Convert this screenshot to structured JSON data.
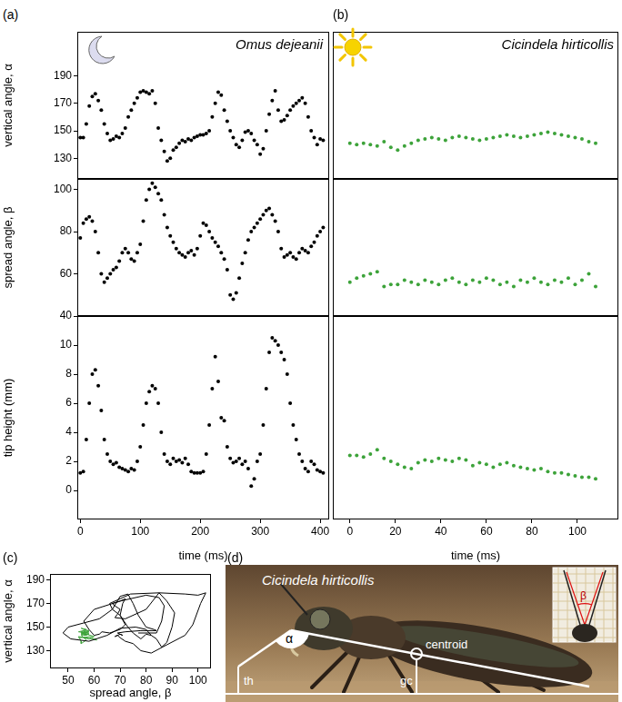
{
  "chart_data": [
    {
      "type": "scatter",
      "title": "Omus dejeanii",
      "annotations": [
        "(a)"
      ],
      "ylabel": "vertical angle, α",
      "color": "#000000",
      "marker": "circle",
      "x": [
        0,
        5,
        10,
        15,
        20,
        25,
        30,
        35,
        40,
        45,
        50,
        55,
        60,
        65,
        70,
        75,
        80,
        85,
        90,
        95,
        100,
        105,
        110,
        115,
        120,
        125,
        130,
        135,
        140,
        145,
        150,
        155,
        160,
        165,
        170,
        175,
        180,
        185,
        190,
        195,
        200,
        205,
        210,
        215,
        220,
        225,
        230,
        235,
        240,
        245,
        250,
        255,
        260,
        265,
        270,
        275,
        280,
        285,
        290,
        295,
        300,
        305,
        310,
        315,
        320,
        325,
        330,
        335,
        340,
        345,
        350,
        355,
        360,
        365,
        370,
        375,
        380,
        385,
        390,
        395,
        400,
        405
      ],
      "values": [
        145,
        145,
        155,
        168,
        175,
        177,
        172,
        165,
        155,
        148,
        143,
        144,
        146,
        145,
        148,
        152,
        160,
        165,
        170,
        174,
        178,
        179,
        178,
        177,
        179,
        170,
        152,
        143,
        135,
        128,
        130,
        136,
        138,
        141,
        143,
        142,
        144,
        143,
        145,
        146,
        147,
        147,
        148,
        150,
        160,
        170,
        178,
        176,
        165,
        157,
        150,
        145,
        140,
        138,
        143,
        149,
        150,
        148,
        143,
        140,
        133,
        137,
        150,
        162,
        172,
        179,
        165,
        157,
        158,
        161,
        165,
        168,
        170,
        172,
        174,
        170,
        160,
        150,
        145,
        140,
        144,
        143
      ],
      "xlim": [
        -5,
        415
      ],
      "ylim": [
        115,
        222
      ],
      "yticks": [
        130,
        150,
        170,
        190
      ],
      "tick_labels": "y"
    },
    {
      "type": "scatter",
      "ylabel": "spread angle, β",
      "color": "#000000",
      "marker": "circle",
      "x": [
        0,
        5,
        10,
        15,
        20,
        25,
        30,
        35,
        40,
        45,
        50,
        55,
        60,
        65,
        70,
        75,
        80,
        85,
        90,
        95,
        100,
        105,
        110,
        115,
        120,
        125,
        130,
        135,
        140,
        145,
        150,
        155,
        160,
        165,
        170,
        175,
        180,
        185,
        190,
        195,
        200,
        205,
        210,
        215,
        220,
        225,
        230,
        235,
        240,
        245,
        250,
        255,
        260,
        265,
        270,
        275,
        280,
        285,
        290,
        295,
        300,
        305,
        310,
        315,
        320,
        325,
        330,
        335,
        340,
        345,
        350,
        355,
        360,
        365,
        370,
        375,
        380,
        385,
        390,
        395,
        400,
        405
      ],
      "values": [
        77,
        84,
        86,
        87,
        85,
        80,
        70,
        60,
        56,
        58,
        60,
        62,
        63,
        66,
        70,
        72,
        70,
        67,
        66,
        70,
        74,
        85,
        95,
        100,
        103,
        101,
        98,
        95,
        88,
        82,
        78,
        75,
        72,
        70,
        69,
        68,
        70,
        71,
        69,
        72,
        78,
        84,
        83,
        80,
        77,
        75,
        73,
        70,
        67,
        62,
        50,
        48,
        51,
        58,
        65,
        70,
        76,
        80,
        82,
        84,
        86,
        88,
        90,
        91,
        88,
        85,
        80,
        72,
        68,
        69,
        70,
        68,
        67,
        70,
        72,
        71,
        70,
        73,
        75,
        78,
        80,
        82
      ],
      "xlim": [
        -5,
        415
      ],
      "ylim": [
        40,
        105
      ],
      "yticks": [
        40,
        60,
        80,
        100
      ],
      "tick_labels": "y"
    },
    {
      "type": "scatter",
      "ylabel": "tip height (mm)",
      "xlabel": "time (ms)",
      "color": "#000000",
      "marker": "circle",
      "x": [
        0,
        5,
        10,
        15,
        20,
        25,
        30,
        35,
        40,
        45,
        50,
        55,
        60,
        65,
        70,
        75,
        80,
        85,
        90,
        95,
        100,
        105,
        110,
        115,
        120,
        125,
        130,
        135,
        140,
        145,
        150,
        155,
        160,
        165,
        170,
        175,
        180,
        185,
        190,
        195,
        200,
        205,
        210,
        215,
        220,
        225,
        230,
        235,
        240,
        245,
        250,
        255,
        260,
        265,
        270,
        275,
        280,
        285,
        290,
        295,
        300,
        305,
        310,
        315,
        320,
        325,
        330,
        335,
        340,
        345,
        350,
        355,
        360,
        365,
        370,
        375,
        380,
        385,
        390,
        395,
        400,
        405
      ],
      "values": [
        1.2,
        1.3,
        3.5,
        6.0,
        8.0,
        8.3,
        7.2,
        5.5,
        3.5,
        2.5,
        2.0,
        1.8,
        1.9,
        1.6,
        1.5,
        1.4,
        1.3,
        1.5,
        1.4,
        2.0,
        3.0,
        4.5,
        6.0,
        6.8,
        7.2,
        7.0,
        6.0,
        4.0,
        2.5,
        2.0,
        1.8,
        2.2,
        2.0,
        2.1,
        1.9,
        2.2,
        1.8,
        1.3,
        1.2,
        1.2,
        1.2,
        1.3,
        2.5,
        4.5,
        7.0,
        9.2,
        7.5,
        5.0,
        4.8,
        3.0,
        2.2,
        1.9,
        2.0,
        2.2,
        1.8,
        2.0,
        1.5,
        0.3,
        0.8,
        2.0,
        2.5,
        4.5,
        7.0,
        9.5,
        10.5,
        10.3,
        10.0,
        9.5,
        9.0,
        8.0,
        6.0,
        4.5,
        3.5,
        2.5,
        2.0,
        1.5,
        1.3,
        2.0,
        1.8,
        1.4,
        1.3,
        1.2
      ],
      "xlim": [
        -5,
        415
      ],
      "xticks": [
        0,
        100,
        200,
        300,
        400
      ],
      "ylim": [
        -2,
        12
      ],
      "yticks": [
        0,
        2,
        4,
        6,
        8,
        10
      ]
    },
    {
      "type": "scatter",
      "title": "Cicindela hirticollis",
      "annotations": [
        "(b)"
      ],
      "color": "#3da33a",
      "marker": "circle",
      "x": [
        0,
        3,
        6,
        9,
        12,
        15,
        18,
        21,
        24,
        27,
        30,
        33,
        36,
        39,
        42,
        45,
        48,
        51,
        54,
        57,
        60,
        63,
        66,
        69,
        72,
        75,
        78,
        81,
        84,
        87,
        90,
        93,
        96,
        99,
        102,
        105,
        108
      ],
      "values": [
        141,
        140,
        141,
        140,
        139,
        142,
        138,
        136,
        139,
        141,
        143,
        144,
        145,
        144,
        143,
        145,
        146,
        145,
        144,
        143,
        144,
        145,
        146,
        147,
        146,
        145,
        146,
        147,
        148,
        149,
        148,
        147,
        146,
        145,
        144,
        142,
        141
      ],
      "xlim": [
        -7.5,
        118
      ],
      "ylim": [
        115,
        222
      ],
      "tick_labels": false
    },
    {
      "type": "scatter",
      "color": "#3da33a",
      "marker": "circle",
      "x": [
        0,
        3,
        6,
        9,
        12,
        15,
        18,
        21,
        24,
        27,
        30,
        33,
        36,
        39,
        42,
        45,
        48,
        51,
        54,
        57,
        60,
        63,
        66,
        69,
        72,
        75,
        78,
        81,
        84,
        87,
        90,
        93,
        96,
        99,
        102,
        105,
        108
      ],
      "values": [
        56,
        58,
        59,
        60,
        61,
        54,
        55,
        55,
        57,
        56,
        55,
        57,
        56,
        55,
        57,
        58,
        56,
        55,
        57,
        56,
        58,
        57,
        55,
        56,
        54,
        57,
        56,
        58,
        56,
        55,
        57,
        56,
        58,
        55,
        57,
        60,
        54
      ],
      "xlim": [
        -7.5,
        118
      ],
      "ylim": [
        40,
        105
      ],
      "tick_labels": false
    },
    {
      "type": "scatter",
      "xlabel": "time (ms)",
      "color": "#3da33a",
      "marker": "circle",
      "x": [
        0,
        3,
        6,
        9,
        12,
        15,
        18,
        21,
        24,
        27,
        30,
        33,
        36,
        39,
        42,
        45,
        48,
        51,
        54,
        57,
        60,
        63,
        66,
        69,
        72,
        75,
        78,
        81,
        84,
        87,
        90,
        93,
        96,
        99,
        102,
        105,
        108
      ],
      "values": [
        2.4,
        2.4,
        2.3,
        2.5,
        2.8,
        2.2,
        2.0,
        1.8,
        1.6,
        1.5,
        1.9,
        2.1,
        2.0,
        2.2,
        2.1,
        2.0,
        2.2,
        2.1,
        1.7,
        1.9,
        1.8,
        1.6,
        1.8,
        1.9,
        1.7,
        1.6,
        1.5,
        1.4,
        1.5,
        1.3,
        1.2,
        1.2,
        1.1,
        1.0,
        0.9,
        0.9,
        0.8
      ],
      "xlim": [
        -7.5,
        118
      ],
      "xticks": [
        0,
        20,
        40,
        60,
        80,
        100
      ],
      "ylim": [
        -2,
        12
      ],
      "tick_labels": "x"
    },
    {
      "type": "line",
      "annotations": [
        "(c)"
      ],
      "xlabel": "spread angle, β",
      "ylabel": "vertical angle, α",
      "series": [
        {
          "color": "#000000",
          "x": [
            77,
            84,
            86,
            87,
            85,
            80,
            70,
            60,
            56,
            58,
            60,
            62,
            63,
            66,
            70,
            72,
            70,
            67,
            66,
            70,
            74,
            85,
            95,
            100,
            103,
            101,
            98,
            95,
            88,
            82,
            78,
            75,
            72,
            70,
            69,
            68,
            70,
            71,
            69,
            72,
            78,
            84,
            83,
            80,
            77,
            75,
            73,
            70,
            67,
            62,
            50,
            48,
            51,
            58,
            65,
            70,
            76,
            80,
            82,
            84,
            86,
            88,
            90,
            91,
            88,
            85,
            80,
            72,
            68,
            69,
            70,
            68,
            67,
            70,
            72,
            71,
            70,
            73,
            75,
            78,
            80,
            82
          ],
          "values": [
            145,
            145,
            155,
            168,
            175,
            177,
            172,
            165,
            155,
            148,
            143,
            144,
            146,
            145,
            148,
            152,
            160,
            165,
            170,
            174,
            178,
            179,
            178,
            177,
            179,
            170,
            152,
            143,
            135,
            128,
            130,
            136,
            138,
            141,
            143,
            142,
            144,
            143,
            145,
            146,
            147,
            147,
            148,
            150,
            160,
            170,
            178,
            176,
            165,
            157,
            150,
            145,
            140,
            138,
            143,
            149,
            150,
            148,
            143,
            140,
            133,
            137,
            150,
            162,
            172,
            179,
            165,
            157,
            158,
            161,
            165,
            168,
            170,
            172,
            174,
            170,
            160,
            150,
            145,
            140,
            144,
            143
          ]
        },
        {
          "color": "#3da33a",
          "x": [
            56,
            58,
            59,
            60,
            61,
            54,
            55,
            55,
            57,
            56,
            55,
            57,
            56,
            55,
            57,
            58,
            56,
            55,
            57,
            56,
            58,
            57,
            55,
            56,
            54,
            57,
            56,
            58,
            56,
            55,
            57,
            56,
            58,
            55,
            57,
            60,
            54
          ],
          "values": [
            141,
            140,
            141,
            140,
            139,
            142,
            138,
            136,
            139,
            141,
            143,
            144,
            145,
            144,
            143,
            145,
            146,
            145,
            144,
            143,
            144,
            145,
            146,
            147,
            146,
            145,
            146,
            147,
            148,
            149,
            148,
            147,
            146,
            145,
            144,
            142,
            141
          ]
        }
      ],
      "xlim": [
        43,
        105
      ],
      "xticks": [
        50,
        60,
        70,
        80,
        90,
        100
      ],
      "ylim": [
        115,
        195
      ],
      "yticks": [
        130,
        150,
        170,
        190
      ]
    }
  ],
  "panel_d": {
    "label": "(d)",
    "title": "Cicindela hirticollis",
    "annotations": [
      "α",
      "centroid",
      "th",
      "gc",
      "β"
    ]
  }
}
